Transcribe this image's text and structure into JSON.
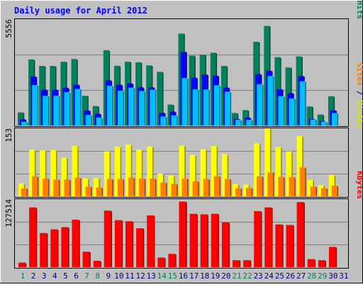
{
  "chart_data": [
    {
      "type": "bar",
      "title": "Daily usage for April 2012",
      "panel": "hits-files-pages",
      "y_max_label": "5556",
      "ylim": [
        0,
        5556
      ],
      "categories": [
        "1",
        "2",
        "3",
        "4",
        "5",
        "6",
        "7",
        "8",
        "9",
        "10",
        "11",
        "12",
        "13",
        "14",
        "15",
        "16",
        "17",
        "18",
        "19",
        "20",
        "21",
        "22",
        "23",
        "24",
        "25",
        "26",
        "27",
        "28",
        "29",
        "30",
        "31"
      ],
      "series": [
        {
          "name": "Hits",
          "color": "#00805C",
          "values": [
            680,
            3450,
            3110,
            3110,
            3330,
            3470,
            1550,
            1010,
            3930,
            3120,
            3330,
            3300,
            3140,
            2800,
            1090,
            4800,
            3650,
            3700,
            3800,
            3110,
            650,
            800,
            4370,
            5200,
            3570,
            3030,
            3610,
            990,
            570,
            1530,
            0
          ]
        },
        {
          "name": "Files",
          "color": "#0000FF",
          "values": [
            320,
            2560,
            1870,
            1870,
            1970,
            2130,
            780,
            610,
            2360,
            2130,
            2200,
            2000,
            2000,
            660,
            720,
            3850,
            2500,
            2660,
            2600,
            1980,
            340,
            410,
            2680,
            2860,
            1890,
            1690,
            2580,
            350,
            230,
            790,
            0
          ]
        },
        {
          "name": "Pages",
          "color": "#00C0FF",
          "values": [
            190,
            2110,
            1550,
            1560,
            1740,
            1910,
            550,
            420,
            2080,
            1810,
            1980,
            1800,
            1870,
            470,
            530,
            2480,
            1890,
            1880,
            2100,
            1770,
            300,
            300,
            2160,
            2590,
            1530,
            1420,
            2310,
            310,
            200,
            650,
            0
          ]
        }
      ]
    },
    {
      "type": "bar",
      "panel": "visits-sites",
      "y_max_label": "153",
      "ylim": [
        0,
        153
      ],
      "categories": [
        "1",
        "2",
        "3",
        "4",
        "5",
        "6",
        "7",
        "8",
        "9",
        "10",
        "11",
        "12",
        "13",
        "14",
        "15",
        "16",
        "17",
        "18",
        "19",
        "20",
        "21",
        "22",
        "23",
        "24",
        "25",
        "26",
        "27",
        "28",
        "29",
        "30",
        "31"
      ],
      "series": [
        {
          "name": "Visits",
          "color": "#FFFF00",
          "values": [
            29,
            105,
            103,
            104,
            87,
            113,
            40,
            41,
            101,
            112,
            116,
            105,
            112,
            51,
            47,
            114,
            93,
            106,
            113,
            95,
            27,
            26,
            119,
            153,
            111,
            101,
            136,
            37,
            25,
            48,
            0
          ]
        },
        {
          "name": "Sites",
          "color": "#FF8000",
          "values": [
            18,
            45,
            40,
            38,
            38,
            42,
            22,
            20,
            39,
            39,
            42,
            40,
            40,
            31,
            28,
            40,
            34,
            39,
            45,
            39,
            18,
            19,
            45,
            54,
            44,
            43,
            65,
            22,
            18,
            24,
            0
          ]
        }
      ]
    },
    {
      "type": "bar",
      "panel": "kbytes",
      "y_max_label": "127514",
      "ylim": [
        0,
        127514
      ],
      "categories": [
        "1",
        "2",
        "3",
        "4",
        "5",
        "6",
        "7",
        "8",
        "9",
        "10",
        "11",
        "12",
        "13",
        "14",
        "15",
        "16",
        "17",
        "18",
        "19",
        "20",
        "21",
        "22",
        "23",
        "24",
        "25",
        "26",
        "27",
        "28",
        "29",
        "30",
        "31"
      ],
      "series": [
        {
          "name": "KBytes",
          "color": "#FF0000",
          "values": [
            8500,
            112000,
            64000,
            71000,
            75000,
            89000,
            29000,
            12000,
            106000,
            88000,
            86000,
            73000,
            97000,
            18000,
            25000,
            123000,
            100000,
            99000,
            100000,
            84000,
            13000,
            13000,
            105000,
            112000,
            80000,
            79000,
            122000,
            15000,
            13000,
            38000,
            0
          ]
        }
      ]
    }
  ],
  "right_labels": {
    "top": [
      {
        "text": "Pages",
        "color": "#00C0FF"
      },
      {
        "text": " / ",
        "color": "#000080"
      },
      {
        "text": "Files",
        "color": "#0000FF"
      },
      {
        "text": " / ",
        "color": "#000080"
      },
      {
        "text": "Hits",
        "color": "#00805C"
      }
    ],
    "middle": [
      {
        "text": "Sites",
        "color": "#FF8000"
      },
      {
        "text": " / ",
        "color": "#000080"
      },
      {
        "text": "Visits",
        "color": "#E0E000"
      }
    ],
    "bottom": [
      {
        "text": "KBytes",
        "color": "#FF0000"
      }
    ]
  },
  "weekend_days": [
    1,
    7,
    8,
    14,
    15,
    21,
    22,
    28,
    29
  ],
  "colors": {
    "background": "#C0C0C0",
    "title": "#0000FF",
    "day_label": "#000080",
    "weekend_label": "#00805C"
  }
}
